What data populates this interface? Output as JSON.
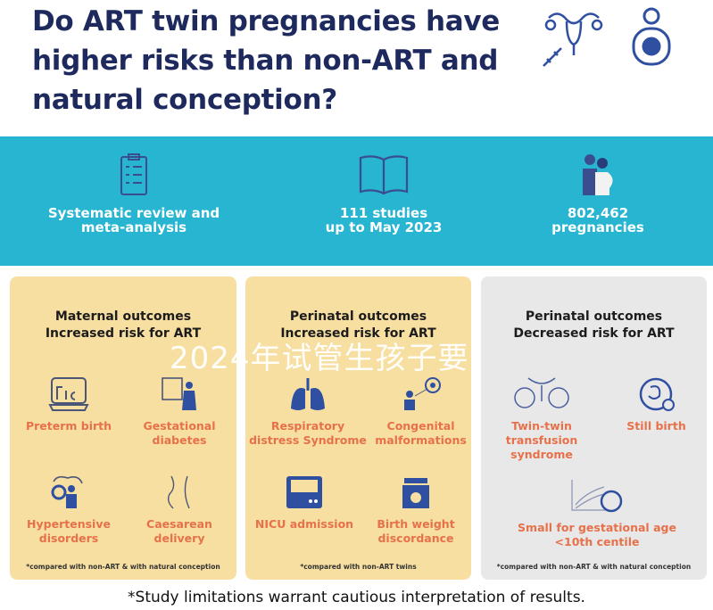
{
  "title": "Do ART twin pregnancies have higher risks than non-ART and natural conception?",
  "stats": [
    {
      "icon": "clipboard-checklist-icon",
      "line1": "Systematic review and",
      "line2": "meta-analysis"
    },
    {
      "icon": "open-book-icon",
      "line1": "111 studies",
      "line2": "up to May 2023"
    },
    {
      "icon": "pregnant-couple-icon",
      "line1": "802,462",
      "line2": "pregnancies"
    }
  ],
  "cards": [
    {
      "title1": "Maternal outcomes",
      "title2": "Increased risk for ART",
      "items": [
        "Preterm birth",
        "Gestational diabetes",
        "Hypertensive disorders",
        "Caesarean delivery"
      ],
      "footnote": "*compared with non-ART & with natural conception"
    },
    {
      "title1": "Perinatal outcomes",
      "title2": "Increased risk for ART",
      "items": [
        "Respiratory distress Syndrome",
        "Congenital malformations",
        "NICU admission",
        "Birth weight discordance"
      ],
      "footnote": "*compared with non-ART twins"
    },
    {
      "title1": "Perinatal outcomes",
      "title2": "Decreased risk for ART",
      "items": [
        "Twin-twin transfusion syndrome",
        "Still birth",
        "Small for gestational age <10th centile"
      ],
      "footnote": "*compared with non-ART & with natural conception"
    }
  ],
  "note": "*Study limitations warrant cautious interpretation of results.",
  "watermark": "2024年试管生孩子要",
  "colors": {
    "navy": "#1e2a5e",
    "teal": "#27b5d2",
    "card_yellow": "#f7dfa2",
    "card_grey": "#e9e8e8",
    "orange": "#e6714a",
    "icon_blue": "#2f4fa0"
  }
}
